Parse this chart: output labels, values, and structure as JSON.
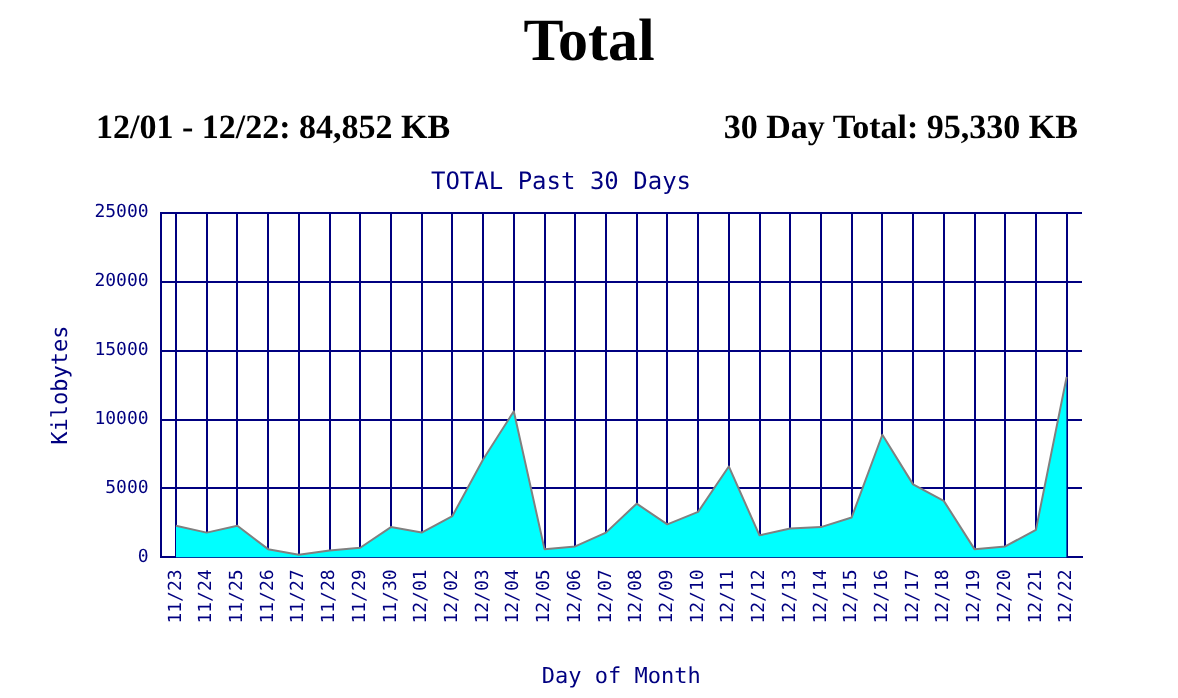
{
  "chart_data": {
    "type": "area",
    "title": "Total",
    "subtitle": "TOTAL Past 30 Days",
    "annotations": [
      "12/01 - 12/22: 84,852 KB",
      "30 Day Total: 95,330 KB"
    ],
    "xlabel": "Day of Month",
    "ylabel": "Kilobytes",
    "categories": [
      "11/23",
      "11/24",
      "11/25",
      "11/26",
      "11/27",
      "11/28",
      "11/29",
      "11/30",
      "12/01",
      "12/02",
      "12/03",
      "12/04",
      "12/05",
      "12/06",
      "12/07",
      "12/08",
      "12/09",
      "12/10",
      "12/11",
      "12/12",
      "12/13",
      "12/14",
      "12/15",
      "12/16",
      "12/17",
      "12/18",
      "12/19",
      "12/20",
      "12/21",
      "12/22"
    ],
    "series": [
      {
        "color": "#00ffff",
        "values": [
          2300,
          1800,
          2300,
          600,
          200,
          500,
          700,
          2200,
          1800,
          3000,
          7100,
          10600,
          600,
          800,
          1800,
          3900,
          2400,
          3300,
          6600,
          1600,
          2100,
          2200,
          2900,
          8900,
          5300,
          4100,
          600,
          800,
          2000,
          13100
        ]
      }
    ],
    "ylim": [
      0,
      25000
    ],
    "yticks": [
      0,
      5000,
      10000,
      15000,
      20000,
      25000
    ],
    "grid": true,
    "legend": false
  }
}
